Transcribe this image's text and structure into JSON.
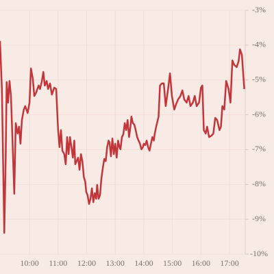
{
  "chart_data": {
    "type": "line",
    "x": [
      538,
      542,
      547,
      550,
      552,
      555,
      558,
      561,
      564,
      568,
      571,
      575,
      578,
      581,
      584,
      588,
      591,
      596,
      600,
      603,
      607,
      610,
      614,
      619,
      622,
      626,
      629,
      632,
      636,
      639,
      643,
      647,
      652,
      656,
      660,
      663,
      666,
      669,
      673,
      676,
      679,
      682,
      685,
      688,
      691,
      694,
      696,
      699,
      702,
      705,
      708,
      711,
      714,
      717,
      719,
      722,
      725,
      728,
      731,
      734,
      737,
      740,
      742,
      745,
      748,
      751,
      754,
      757,
      760,
      763,
      766,
      768,
      771,
      774,
      777,
      780,
      783,
      786,
      789,
      791,
      794,
      797,
      800,
      803,
      806,
      809,
      812,
      814,
      817,
      820,
      823,
      826,
      829,
      832,
      835,
      838,
      840,
      843,
      846,
      849,
      852,
      855,
      858,
      861,
      863,
      866,
      871,
      874,
      878,
      882,
      886,
      891,
      895,
      899,
      904,
      908,
      912,
      917,
      921,
      925,
      930,
      934,
      938,
      943,
      947,
      951,
      956,
      960,
      963,
      966,
      970,
      973,
      977,
      982,
      986,
      990,
      994,
      999,
      1002,
      1005,
      1009,
      1013,
      1018,
      1022,
      1026,
      1030,
      1035,
      1039,
      1042,
      1046,
      1051
    ],
    "series": [
      {
        "color": "#c0363a",
        "values": [
          -3.88,
          -5.26,
          -9.39,
          -7.23,
          -5.06,
          -5.65,
          -5.03,
          -5.46,
          -6.64,
          -8.27,
          -6.24,
          -6.54,
          -6.34,
          -6.83,
          -6.15,
          -5.85,
          -5.75,
          -5.95,
          -5.65,
          -4.67,
          -4.97,
          -5.46,
          -5.36,
          -5.16,
          -5.26,
          -5.03,
          -4.77,
          -5.16,
          -5.03,
          -5.26,
          -5.1,
          -5.42,
          -5.22,
          -5.26,
          -6.44,
          -6.93,
          -6.44,
          -7.03,
          -7.13,
          -7.42,
          -6.64,
          -7.13,
          -6.64,
          -6.93,
          -7.23,
          -6.74,
          -7.42,
          -7.33,
          -7.23,
          -7.58,
          -7.13,
          -7.33,
          -7.78,
          -7.92,
          -8.21,
          -8.31,
          -8.56,
          -8.41,
          -8.11,
          -8.51,
          -8.25,
          -8.41,
          -8.01,
          -8.41,
          -8.31,
          -7.82,
          -7.52,
          -7.27,
          -7.33,
          -6.93,
          -6.74,
          -6.79,
          -7.19,
          -6.68,
          -7.13,
          -6.83,
          -7.23,
          -6.74,
          -6.93,
          -6.99,
          -6.64,
          -6.56,
          -6.24,
          -6.44,
          -6.15,
          -6.64,
          -6.34,
          -6.05,
          -6.24,
          -6.28,
          -6.44,
          -6.64,
          -6.74,
          -6.83,
          -6.99,
          -6.93,
          -6.83,
          -6.87,
          -6.74,
          -6.93,
          -7.03,
          -6.83,
          -6.64,
          -6.74,
          -6.54,
          -6.34,
          -6.05,
          -5.16,
          -5.1,
          -5.1,
          -5.75,
          -5.26,
          -4.81,
          -5.46,
          -5.85,
          -5.69,
          -5.56,
          -5.46,
          -5.3,
          -5.56,
          -5.65,
          -5.46,
          -5.75,
          -5.65,
          -5.46,
          -5.75,
          -5.65,
          -5.22,
          -5.16,
          -6.44,
          -6.54,
          -6.34,
          -6.64,
          -6.6,
          -6.54,
          -6.09,
          -6.15,
          -6.44,
          -6.34,
          -5.75,
          -5.85,
          -5.03,
          -5.26,
          -5.65,
          -4.44,
          -4.57,
          -4.63,
          -4.47,
          -4.12,
          -4.28,
          -5.26
        ]
      }
    ],
    "xlim": [
      538,
      1053
    ],
    "xticks": [
      {
        "value": 600,
        "label": "10:00"
      },
      {
        "value": 660,
        "label": "11:00"
      },
      {
        "value": 720,
        "label": "12:00"
      },
      {
        "value": 780,
        "label": "13:00"
      },
      {
        "value": 840,
        "label": "14:00"
      },
      {
        "value": 900,
        "label": "15:00"
      },
      {
        "value": 960,
        "label": "16:00"
      },
      {
        "value": 1020,
        "label": "17:00"
      }
    ],
    "ylim": [
      -10,
      -3
    ],
    "yticks": [
      {
        "value": -3,
        "label": "-3%"
      },
      {
        "value": -4,
        "label": "-4%"
      },
      {
        "value": -5,
        "label": "-5%"
      },
      {
        "value": -6,
        "label": "-6%"
      },
      {
        "value": -7,
        "label": "-7%"
      },
      {
        "value": -8,
        "label": "-8%"
      },
      {
        "value": -9,
        "label": "-9%"
      },
      {
        "value": -10,
        "label": "-10%"
      }
    ],
    "grid": true
  }
}
